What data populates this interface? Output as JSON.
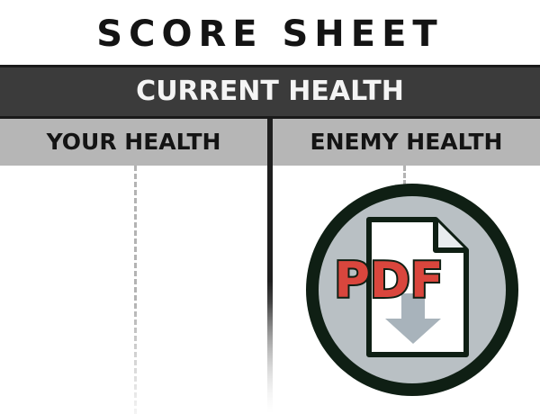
{
  "title": "SCORE SHEET",
  "header": {
    "label": "CURRENT HEALTH"
  },
  "columns": [
    {
      "label": "YOUR HEALTH"
    },
    {
      "label": "ENEMY HEALTH"
    }
  ],
  "pdf_icon": {
    "label": "PDF",
    "icon": "pdf-download-icon",
    "colors": {
      "ring": "#0f1f14",
      "circle_fill": "#b9c0c4",
      "doc_fill": "#ffffff",
      "text_fill": "#d9463d",
      "arrow_fill": "#a8b3bb"
    }
  }
}
